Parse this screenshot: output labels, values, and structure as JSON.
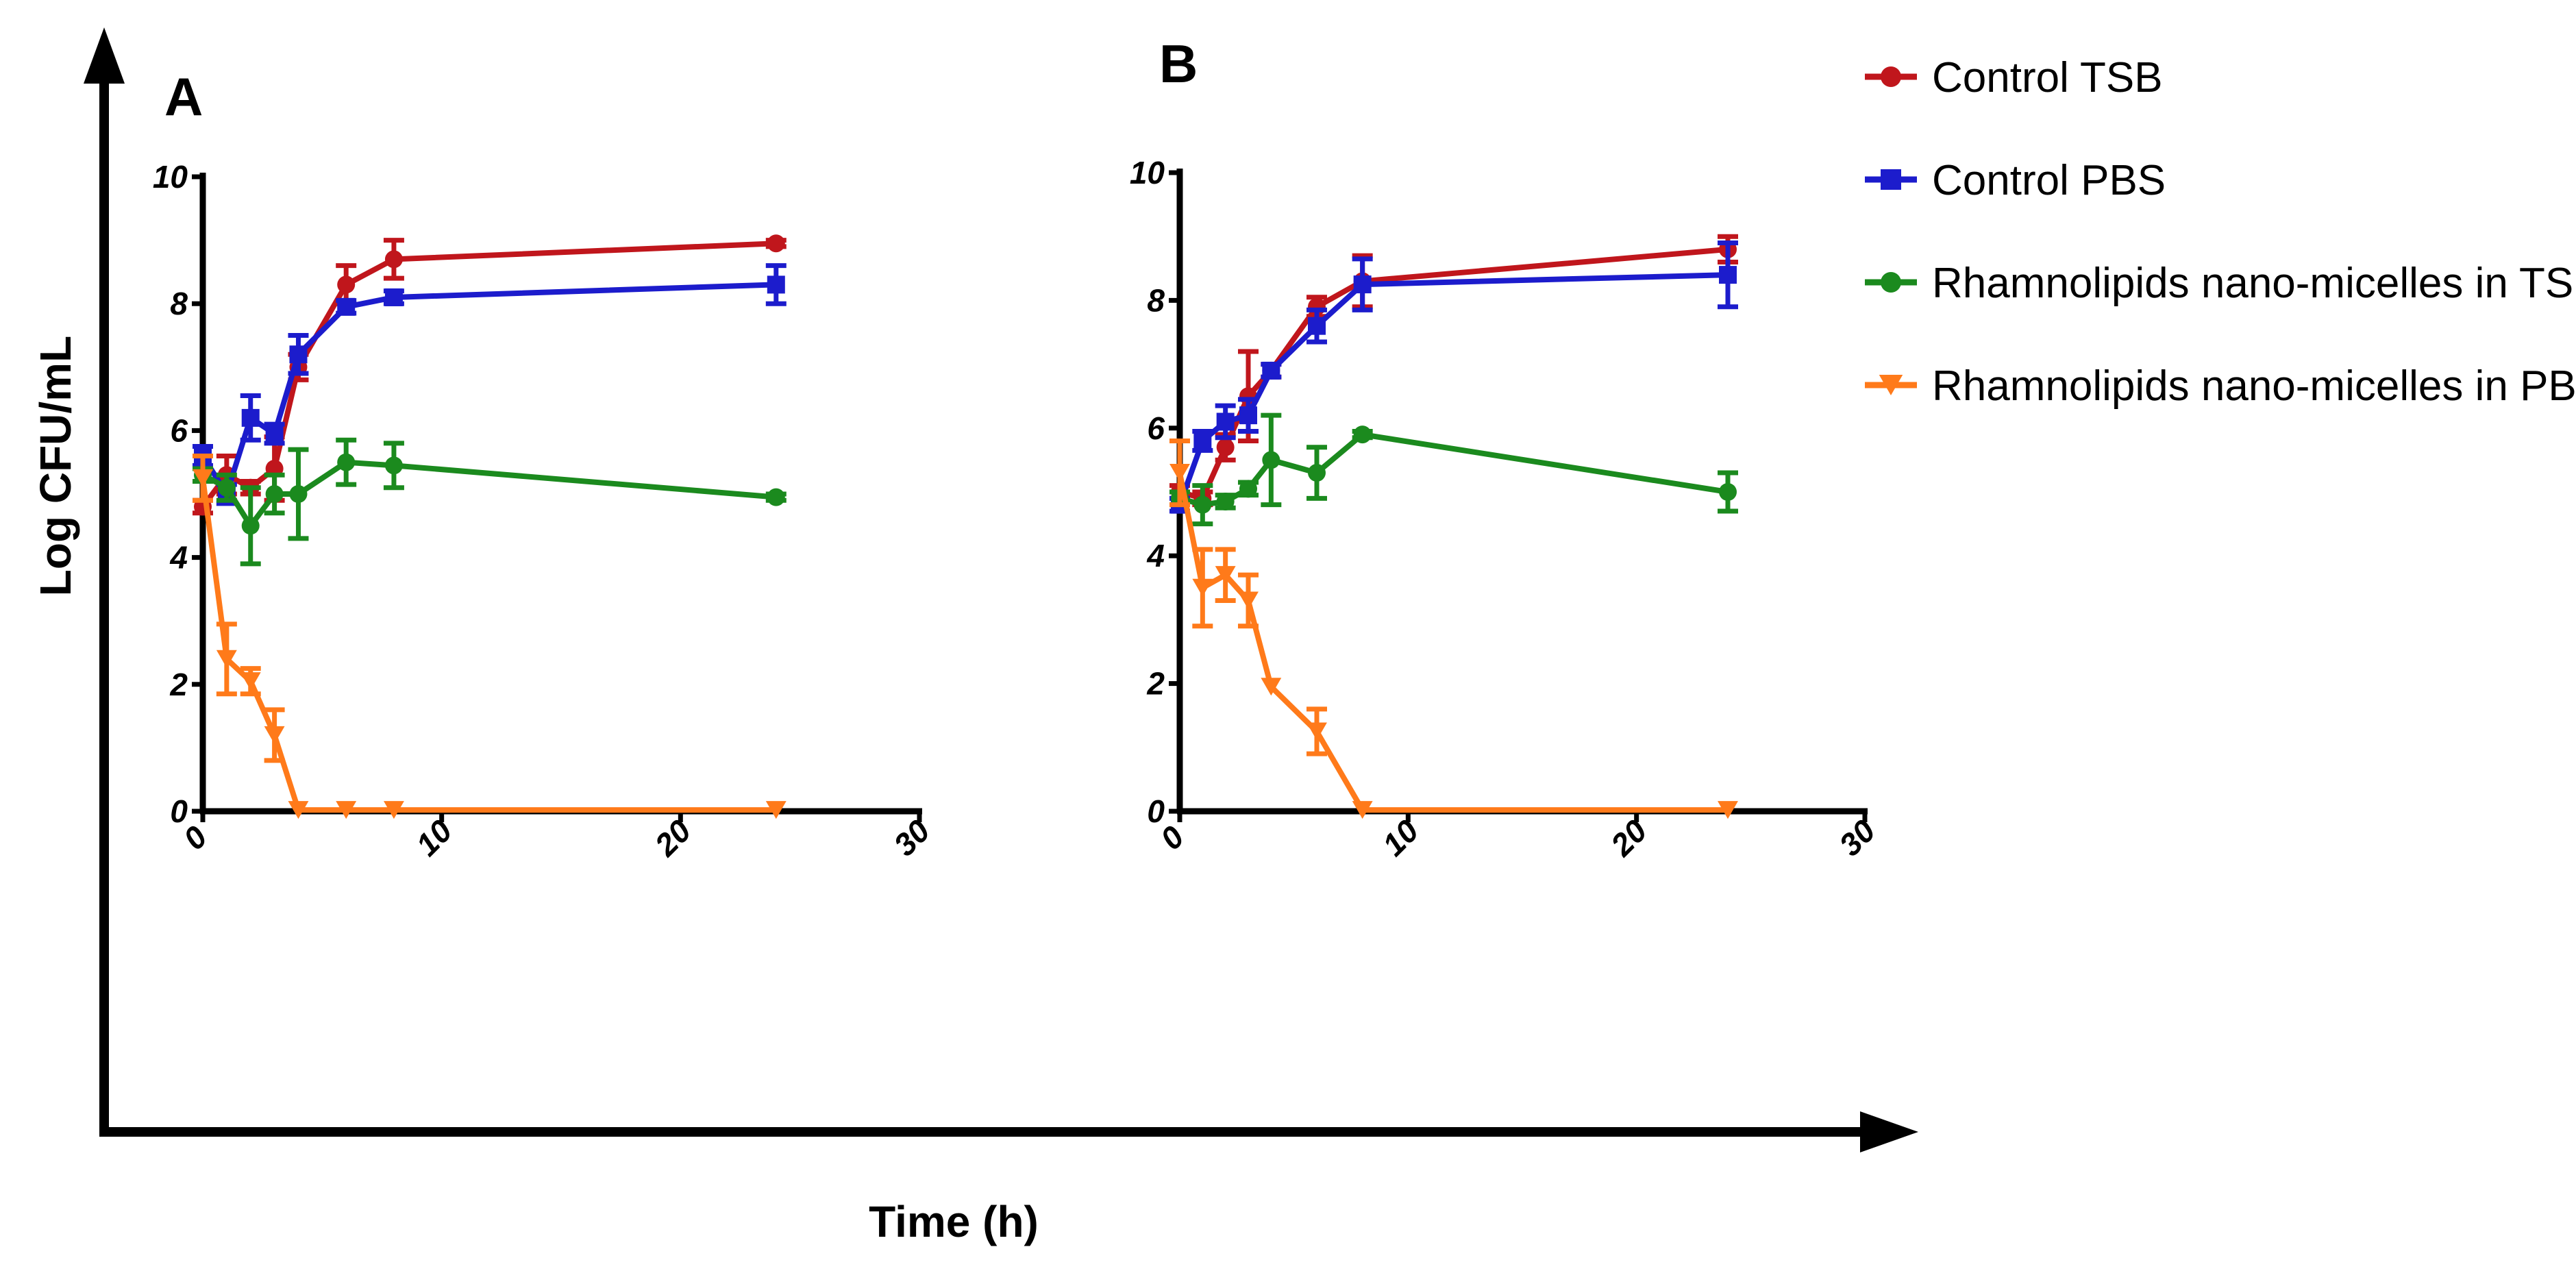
{
  "figure": {
    "y_axis_title": "Log CFU/mL",
    "x_axis_title": "Time (h)"
  },
  "legend": [
    {
      "name": "Control TSB",
      "color": "#c0161c",
      "marker": "circle"
    },
    {
      "name": "Control PBS",
      "color": "#1c1ccc",
      "marker": "square"
    },
    {
      "name": "Rhamnolipids nano-micelles in TSB",
      "color": "#1b8a1e",
      "marker": "circle"
    },
    {
      "name": "Rhamnolipids nano-micelles in PBS",
      "color": "#ff7a1a",
      "marker": "triangle-down"
    }
  ],
  "chart_data": [
    {
      "type": "line",
      "panel_label": "A",
      "xlim": [
        0,
        30
      ],
      "ylim": [
        0,
        10
      ],
      "x_ticks": [
        "0",
        "10",
        "20",
        "30"
      ],
      "y_ticks": [
        "0",
        "2",
        "4",
        "6",
        "8",
        "10"
      ],
      "series": [
        {
          "name": "Control TSB",
          "x": [
            0,
            1,
            2,
            3,
            4,
            6,
            8,
            24
          ],
          "y": [
            4.8,
            5.3,
            5.1,
            5.4,
            7.0,
            8.3,
            8.7,
            8.95
          ],
          "err": [
            0.1,
            0.3,
            0.1,
            0.5,
            0.2,
            0.3,
            0.3,
            0.05
          ]
        },
        {
          "name": "Control PBS",
          "x": [
            0,
            1,
            2,
            3,
            4,
            6,
            8,
            24
          ],
          "y": [
            5.6,
            5.0,
            6.2,
            5.95,
            7.2,
            7.95,
            8.1,
            8.3
          ],
          "err": [
            0.15,
            0.15,
            0.35,
            0.15,
            0.3,
            0.1,
            0.1,
            0.3
          ]
        },
        {
          "name": "Rhamnolipids nano-micelles in TSB",
          "x": [
            0,
            1,
            2,
            3,
            4,
            6,
            8,
            24
          ],
          "y": [
            5.3,
            5.1,
            4.5,
            5.0,
            5.0,
            5.5,
            5.45,
            4.95
          ],
          "err": [
            0.1,
            0.2,
            0.6,
            0.3,
            0.7,
            0.35,
            0.35,
            0.05
          ]
        },
        {
          "name": "Rhamnolipids nano-micelles in PBS",
          "x": [
            0,
            1,
            2,
            3,
            4,
            6,
            8,
            24
          ],
          "y": [
            5.25,
            2.4,
            2.05,
            1.2,
            0.02,
            0.02,
            0.02,
            0.02
          ],
          "err": [
            0.35,
            0.55,
            0.2,
            0.4,
            0,
            0,
            0,
            0
          ]
        }
      ]
    },
    {
      "type": "line",
      "panel_label": "B",
      "xlim": [
        0,
        30
      ],
      "ylim": [
        0,
        10
      ],
      "x_ticks": [
        "0",
        "10",
        "20",
        "30"
      ],
      "y_ticks": [
        "0",
        "2",
        "4",
        "6",
        "8",
        "10"
      ],
      "series": [
        {
          "name": "Control TSB",
          "x": [
            0,
            1,
            2,
            3,
            4,
            6,
            8,
            24
          ],
          "y": [
            5.0,
            4.9,
            5.7,
            6.5,
            6.9,
            7.9,
            8.3,
            8.8
          ],
          "err": [
            0.1,
            0.1,
            0.2,
            0.7,
            0.1,
            0.15,
            0.4,
            0.2
          ]
        },
        {
          "name": "Control PBS",
          "x": [
            0,
            1,
            2,
            3,
            4,
            6,
            8,
            24
          ],
          "y": [
            4.8,
            5.8,
            6.1,
            6.2,
            6.9,
            7.6,
            8.25,
            8.4
          ],
          "err": [
            0.1,
            0.15,
            0.25,
            0.25,
            0.1,
            0.25,
            0.4,
            0.5
          ]
        },
        {
          "name": "Rhamnolipids nano-micelles in TSB",
          "x": [
            0,
            1,
            2,
            3,
            4,
            6,
            8,
            24
          ],
          "y": [
            4.9,
            4.8,
            4.85,
            5.05,
            5.5,
            5.3,
            5.9,
            5.0
          ],
          "err": [
            0.1,
            0.3,
            0.1,
            0.1,
            0.7,
            0.4,
            0.05,
            0.3
          ]
        },
        {
          "name": "Rhamnolipids nano-micelles in PBS",
          "x": [
            0,
            1,
            2,
            3,
            4,
            6,
            8,
            24
          ],
          "y": [
            5.3,
            3.5,
            3.7,
            3.3,
            1.95,
            1.25,
            0.02,
            0.02
          ],
          "err": [
            0.5,
            0.6,
            0.4,
            0.4,
            0,
            0.35,
            0,
            0
          ]
        }
      ]
    }
  ]
}
